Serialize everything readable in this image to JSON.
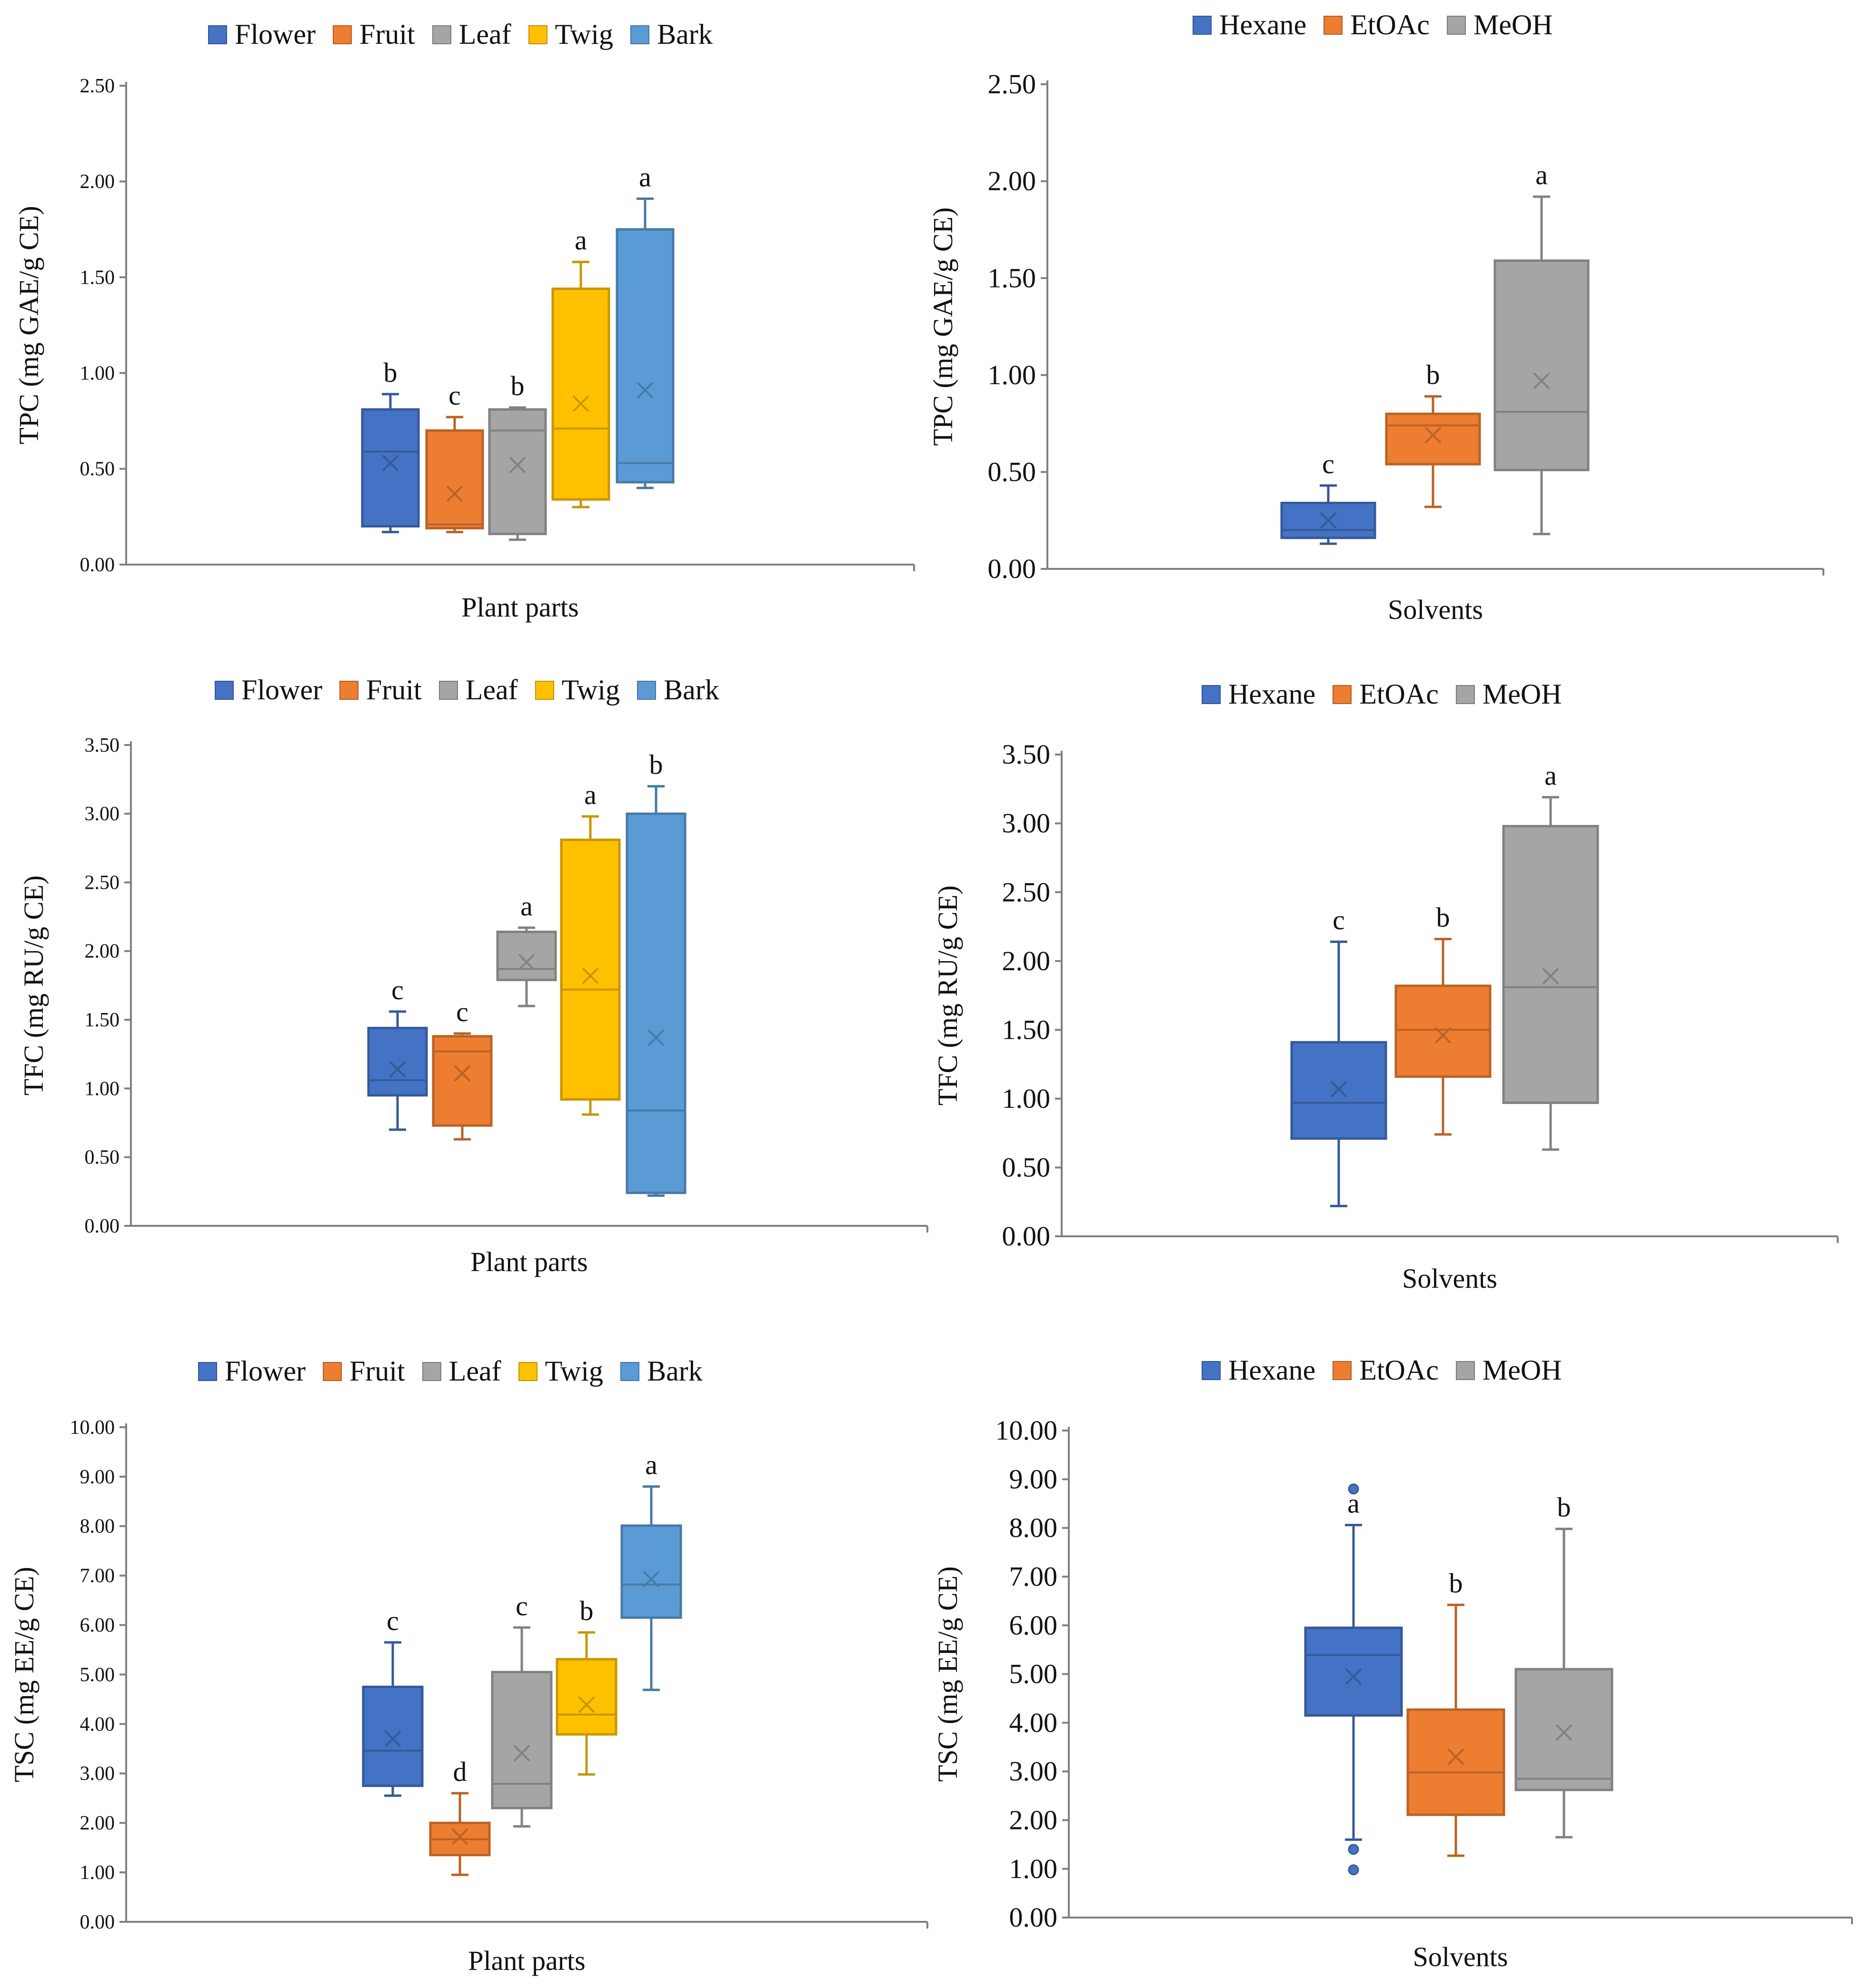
{
  "chart_data": [
    {
      "type": "boxplot",
      "id": "tpc-parts",
      "ylabel": "TPC (mg GAE/g CE)",
      "xlabel": "Plant parts",
      "ylim": [
        0,
        2.5
      ],
      "yticks": [
        "0.00",
        "0.50",
        "1.00",
        "1.50",
        "2.00",
        "2.50"
      ],
      "legend": [
        "Flower",
        "Fruit",
        "Leaf",
        "Twig",
        "Bark"
      ],
      "boxes": [
        {
          "name": "Flower",
          "color": "#4472C4",
          "min": 0.17,
          "q1": 0.2,
          "median": 0.59,
          "q3": 0.81,
          "max": 0.89,
          "mean": 0.53,
          "label": "b"
        },
        {
          "name": "Fruit",
          "color": "#ED7D31",
          "min": 0.17,
          "q1": 0.19,
          "median": 0.21,
          "q3": 0.7,
          "max": 0.77,
          "mean": 0.37,
          "label": "c"
        },
        {
          "name": "Leaf",
          "color": "#A5A5A5",
          "min": 0.13,
          "q1": 0.16,
          "median": 0.7,
          "q3": 0.81,
          "max": 0.82,
          "mean": 0.52,
          "label": "b"
        },
        {
          "name": "Twig",
          "color": "#FFC000",
          "min": 0.3,
          "q1": 0.34,
          "median": 0.71,
          "q3": 1.44,
          "max": 1.58,
          "mean": 0.84,
          "label": "a"
        },
        {
          "name": "Bark",
          "color": "#5B9BD5",
          "min": 0.4,
          "q1": 0.43,
          "median": 0.53,
          "q3": 1.75,
          "max": 1.91,
          "mean": 0.91,
          "label": "a"
        }
      ]
    },
    {
      "type": "boxplot",
      "id": "tpc-solvents",
      "ylabel": "TPC (mg GAE/g CE)",
      "xlabel": "Solvents",
      "ylim": [
        0,
        2.5
      ],
      "yticks": [
        "0.00",
        "0.50",
        "1.00",
        "1.50",
        "2.00",
        "2.50"
      ],
      "legend": [
        "Hexane",
        "EtOAc",
        "MeOH"
      ],
      "boxes": [
        {
          "name": "Hexane",
          "color": "#4472C4",
          "min": 0.13,
          "q1": 0.16,
          "median": 0.2,
          "q3": 0.34,
          "max": 0.43,
          "mean": 0.25,
          "label": "c"
        },
        {
          "name": "EtOAc",
          "color": "#ED7D31",
          "min": 0.32,
          "q1": 0.54,
          "median": 0.74,
          "q3": 0.8,
          "max": 0.89,
          "mean": 0.69,
          "label": "b"
        },
        {
          "name": "MeOH",
          "color": "#A5A5A5",
          "min": 0.18,
          "q1": 0.51,
          "median": 0.81,
          "q3": 1.59,
          "max": 1.92,
          "mean": 0.97,
          "label": "a"
        }
      ]
    },
    {
      "type": "boxplot",
      "id": "tfc-parts",
      "ylabel": "TFC (mg RU/g CE)",
      "xlabel": "Plant parts",
      "ylim": [
        0,
        3.5
      ],
      "yticks": [
        "0.00",
        "0.50",
        "1.00",
        "1.50",
        "2.00",
        "2.50",
        "3.00",
        "3.50"
      ],
      "legend": [
        "Flower",
        "Fruit",
        "Leaf",
        "Twig",
        "Bark"
      ],
      "boxes": [
        {
          "name": "Flower",
          "color": "#4472C4",
          "min": 0.7,
          "q1": 0.95,
          "median": 1.06,
          "q3": 1.44,
          "max": 1.56,
          "mean": 1.14,
          "label": "c"
        },
        {
          "name": "Fruit",
          "color": "#ED7D31",
          "min": 0.63,
          "q1": 0.73,
          "median": 1.27,
          "q3": 1.38,
          "max": 1.4,
          "mean": 1.11,
          "label": "c"
        },
        {
          "name": "Leaf",
          "color": "#A5A5A5",
          "min": 1.6,
          "q1": 1.79,
          "median": 1.87,
          "q3": 2.14,
          "max": 2.17,
          "mean": 1.92,
          "label": "a"
        },
        {
          "name": "Twig",
          "color": "#FFC000",
          "min": 0.81,
          "q1": 0.92,
          "median": 1.72,
          "q3": 2.81,
          "max": 2.98,
          "mean": 1.82,
          "label": "a"
        },
        {
          "name": "Bark",
          "color": "#5B9BD5",
          "min": 0.22,
          "q1": 0.24,
          "median": 0.84,
          "q3": 3.0,
          "max": 3.2,
          "mean": 1.37,
          "label": "b"
        }
      ]
    },
    {
      "type": "boxplot",
      "id": "tfc-solvents",
      "ylabel": "TFC (mg RU/g CE)",
      "xlabel": "Solvents",
      "ylim": [
        0,
        3.5
      ],
      "yticks": [
        "0.00",
        "0.50",
        "1.00",
        "1.50",
        "2.00",
        "2.50",
        "3.00",
        "3.50"
      ],
      "legend": [
        "Hexane",
        "EtOAc",
        "MeOH"
      ],
      "boxes": [
        {
          "name": "Hexane",
          "color": "#4472C4",
          "min": 0.22,
          "q1": 0.71,
          "median": 0.97,
          "q3": 1.41,
          "max": 2.14,
          "mean": 1.07,
          "label": "c"
        },
        {
          "name": "EtOAc",
          "color": "#ED7D31",
          "min": 0.74,
          "q1": 1.16,
          "median": 1.5,
          "q3": 1.82,
          "max": 2.16,
          "mean": 1.46,
          "label": "b"
        },
        {
          "name": "MeOH",
          "color": "#A5A5A5",
          "min": 0.63,
          "q1": 0.97,
          "median": 1.81,
          "q3": 2.98,
          "max": 3.19,
          "mean": 1.89,
          "label": "a"
        }
      ]
    },
    {
      "type": "boxplot",
      "id": "tsc-parts",
      "ylabel": "TSC (mg EE/g CE)",
      "xlabel": "Plant parts",
      "ylim": [
        0,
        10
      ],
      "yticks": [
        "0.00",
        "1.00",
        "2.00",
        "3.00",
        "4.00",
        "5.00",
        "6.00",
        "7.00",
        "8.00",
        "9.00",
        "10.00"
      ],
      "legend": [
        "Flower",
        "Fruit",
        "Leaf",
        "Twig",
        "Bark"
      ],
      "boxes": [
        {
          "name": "Flower",
          "color": "#4472C4",
          "min": 2.55,
          "q1": 2.75,
          "median": 3.46,
          "q3": 4.75,
          "max": 5.65,
          "mean": 3.7,
          "label": "c"
        },
        {
          "name": "Fruit",
          "color": "#ED7D31",
          "min": 0.95,
          "q1": 1.35,
          "median": 1.67,
          "q3": 2.0,
          "max": 2.6,
          "mean": 1.72,
          "label": "d"
        },
        {
          "name": "Leaf",
          "color": "#A5A5A5",
          "min": 1.93,
          "q1": 2.3,
          "median": 2.79,
          "q3": 5.05,
          "max": 5.95,
          "mean": 3.41,
          "label": "c"
        },
        {
          "name": "Twig",
          "color": "#FFC000",
          "min": 2.98,
          "q1": 3.79,
          "median": 4.19,
          "q3": 5.31,
          "max": 5.85,
          "mean": 4.39,
          "label": "b"
        },
        {
          "name": "Bark",
          "color": "#5B9BD5",
          "min": 4.69,
          "q1": 6.15,
          "median": 6.82,
          "q3": 8.01,
          "max": 8.8,
          "mean": 6.93,
          "label": "a"
        }
      ]
    },
    {
      "type": "boxplot",
      "id": "tsc-solvents",
      "ylabel": "TSC (mg EE/g CE)",
      "xlabel": "Solvents",
      "ylim": [
        0,
        10
      ],
      "yticks": [
        "0.00",
        "1.00",
        "2.00",
        "3.00",
        "4.00",
        "5.00",
        "6.00",
        "7.00",
        "8.00",
        "9.00",
        "10.00"
      ],
      "legend": [
        "Hexane",
        "EtOAc",
        "MeOH"
      ],
      "boxes": [
        {
          "name": "Hexane",
          "color": "#4472C4",
          "min": 1.6,
          "q1": 4.15,
          "median": 5.39,
          "q3": 5.95,
          "max": 8.06,
          "mean": 4.95,
          "label": "a",
          "outliers": [
            8.8,
            1.4,
            0.98
          ]
        },
        {
          "name": "EtOAc",
          "color": "#ED7D31",
          "min": 1.27,
          "q1": 2.11,
          "median": 2.98,
          "q3": 4.27,
          "max": 6.42,
          "mean": 3.3,
          "label": "b"
        },
        {
          "name": "MeOH",
          "color": "#A5A5A5",
          "min": 1.65,
          "q1": 2.62,
          "median": 2.85,
          "q3": 5.1,
          "max": 7.98,
          "mean": 3.8,
          "label": "b"
        }
      ]
    }
  ]
}
